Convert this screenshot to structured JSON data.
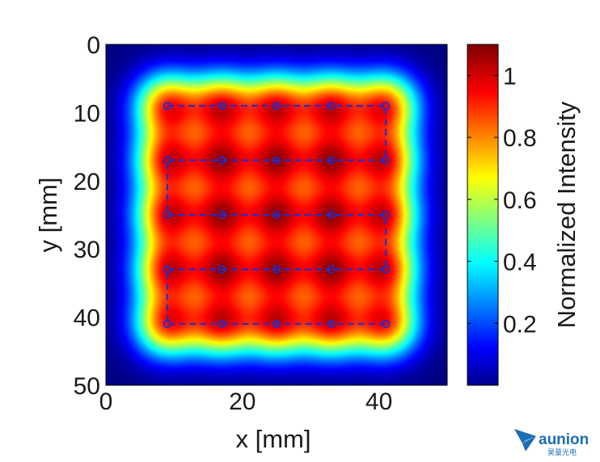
{
  "chart_data": {
    "type": "heatmap",
    "title": "",
    "xlabel": "x [mm]",
    "ylabel": "y [mm]",
    "xlim": [
      0,
      50
    ],
    "ylim": [
      0,
      50
    ],
    "y_axis_reversed": true,
    "x_ticks": [
      "0",
      "20",
      "40"
    ],
    "y_ticks": [
      "0",
      "10",
      "20",
      "30",
      "40",
      "50"
    ],
    "colorbar": {
      "label": "Normalized Intensity",
      "range": [
        0,
        1.1
      ],
      "ticks": [
        "0.2",
        "0.4",
        "0.6",
        "0.8",
        "1"
      ],
      "colormap": "jet"
    },
    "source_points": {
      "x": [
        9,
        17,
        25,
        33,
        41
      ],
      "y": [
        9,
        17,
        25,
        33,
        41
      ]
    },
    "scan_path_color": "#1f2fcf",
    "grid": false
  },
  "watermark": {
    "brand": "aunion",
    "sub": "昊量光电",
    "color": "#1c6fb4"
  }
}
